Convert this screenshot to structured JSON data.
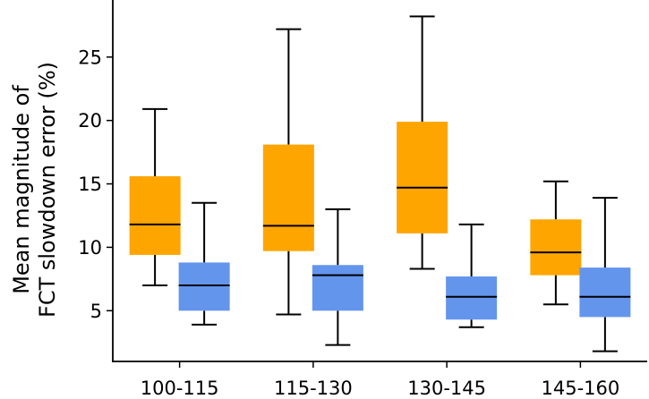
{
  "chart_data": {
    "type": "box",
    "ylabel_lines": [
      "Mean magnitude of",
      "FCT slowdown error (%)"
    ],
    "xlabel": "",
    "categories": [
      "100-115",
      "115-130",
      "130-145",
      "145-160"
    ],
    "yticks": [
      5,
      10,
      15,
      20,
      25
    ],
    "ylim": [
      1.0,
      29.5
    ],
    "grid": false,
    "legend": "none",
    "series": [
      {
        "color": "#FFA500",
        "boxes": [
          {
            "whisker_low": 7.0,
            "q1": 9.4,
            "median": 11.8,
            "q3": 15.6,
            "whisker_high": 20.9
          },
          {
            "whisker_low": 4.7,
            "q1": 9.7,
            "median": 11.7,
            "q3": 18.1,
            "whisker_high": 27.2
          },
          {
            "whisker_low": 8.3,
            "q1": 11.1,
            "median": 14.7,
            "q3": 19.9,
            "whisker_high": 28.2
          },
          {
            "whisker_low": 5.5,
            "q1": 7.8,
            "median": 9.6,
            "q3": 12.2,
            "whisker_high": 15.2
          }
        ]
      },
      {
        "color": "#6495ED",
        "boxes": [
          {
            "whisker_low": 3.9,
            "q1": 5.0,
            "median": 7.0,
            "q3": 8.8,
            "whisker_high": 13.5
          },
          {
            "whisker_low": 2.3,
            "q1": 5.0,
            "median": 7.8,
            "q3": 8.6,
            "whisker_high": 13.0
          },
          {
            "whisker_low": 3.7,
            "q1": 4.3,
            "median": 6.1,
            "q3": 7.7,
            "whisker_high": 11.8
          },
          {
            "whisker_low": 1.8,
            "q1": 4.5,
            "median": 6.1,
            "q3": 8.4,
            "whisker_high": 13.9
          }
        ]
      }
    ]
  }
}
